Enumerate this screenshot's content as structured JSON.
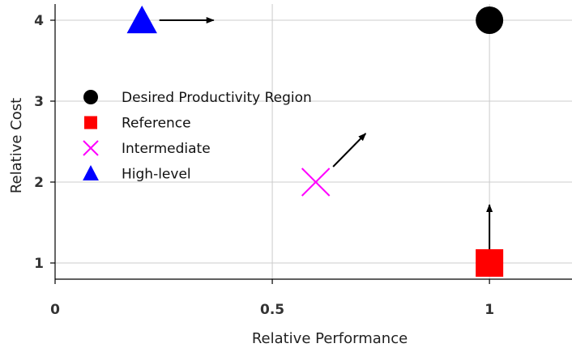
{
  "chart_data": {
    "type": "scatter",
    "title": "",
    "xlabel": "Relative Performance",
    "ylabel": "Relative Cost",
    "xlim": [
      0,
      1.19
    ],
    "ylim": [
      0.8,
      4.2
    ],
    "x_ticks": [
      {
        "value": 0,
        "label": "0"
      },
      {
        "value": 0.5,
        "label": "0.5"
      },
      {
        "value": 1,
        "label": "1"
      }
    ],
    "y_ticks": [
      {
        "value": 1,
        "label": "1"
      },
      {
        "value": 2,
        "label": "2"
      },
      {
        "value": 3,
        "label": "3"
      },
      {
        "value": 4,
        "label": "4"
      }
    ],
    "grid": true,
    "legend_position": "upper-left",
    "series": [
      {
        "name": "Desired Productivity Region",
        "marker": "circle",
        "color": "#000000",
        "x": 1.0,
        "y": 4.0
      },
      {
        "name": "Reference",
        "marker": "square",
        "color": "#ff0000",
        "x": 1.0,
        "y": 1.0
      },
      {
        "name": "Intermediate",
        "marker": "x",
        "color": "#ff00ff",
        "x": 0.6,
        "y": 2.0
      },
      {
        "name": "High-level",
        "marker": "triangle",
        "color": "#0000ff",
        "x": 0.2,
        "y": 4.0
      }
    ],
    "arrows": [
      {
        "from": [
          0.24,
          4.0
        ],
        "to": [
          0.365,
          4.0
        ]
      },
      {
        "from": [
          0.64,
          2.19
        ],
        "to": [
          0.715,
          2.6
        ]
      },
      {
        "from": [
          1.0,
          1.17
        ],
        "to": [
          1.0,
          1.72
        ]
      }
    ]
  }
}
